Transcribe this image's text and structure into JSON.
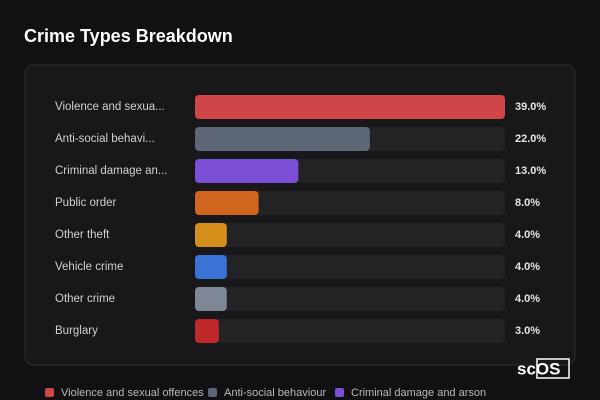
{
  "chart_data": {
    "type": "bar",
    "orientation": "horizontal",
    "title": "Crime Types Breakdown",
    "categories": [
      "Violence and sexua...",
      "Anti-social behavi...",
      "Criminal damage an...",
      "Public order",
      "Other theft",
      "Vehicle crime",
      "Other crime",
      "Burglary"
    ],
    "values": [
      39,
      22,
      13,
      8,
      4,
      4,
      4,
      3
    ],
    "value_labels": [
      "39.0%",
      "22.0%",
      "13.0%",
      "8.0%",
      "4.0%",
      "4.0%",
      "4.0%",
      "3.0%"
    ],
    "colors": [
      "#d04545",
      "#5d6676",
      "#7a4fd6",
      "#d2661f",
      "#d4901a",
      "#3a72d6",
      "#7d8796",
      "#c0282a"
    ],
    "legend": [
      "Violence and sexual offences",
      "Anti-social behaviour",
      "Criminal damage and arson"
    ],
    "watermark": "scOS"
  }
}
